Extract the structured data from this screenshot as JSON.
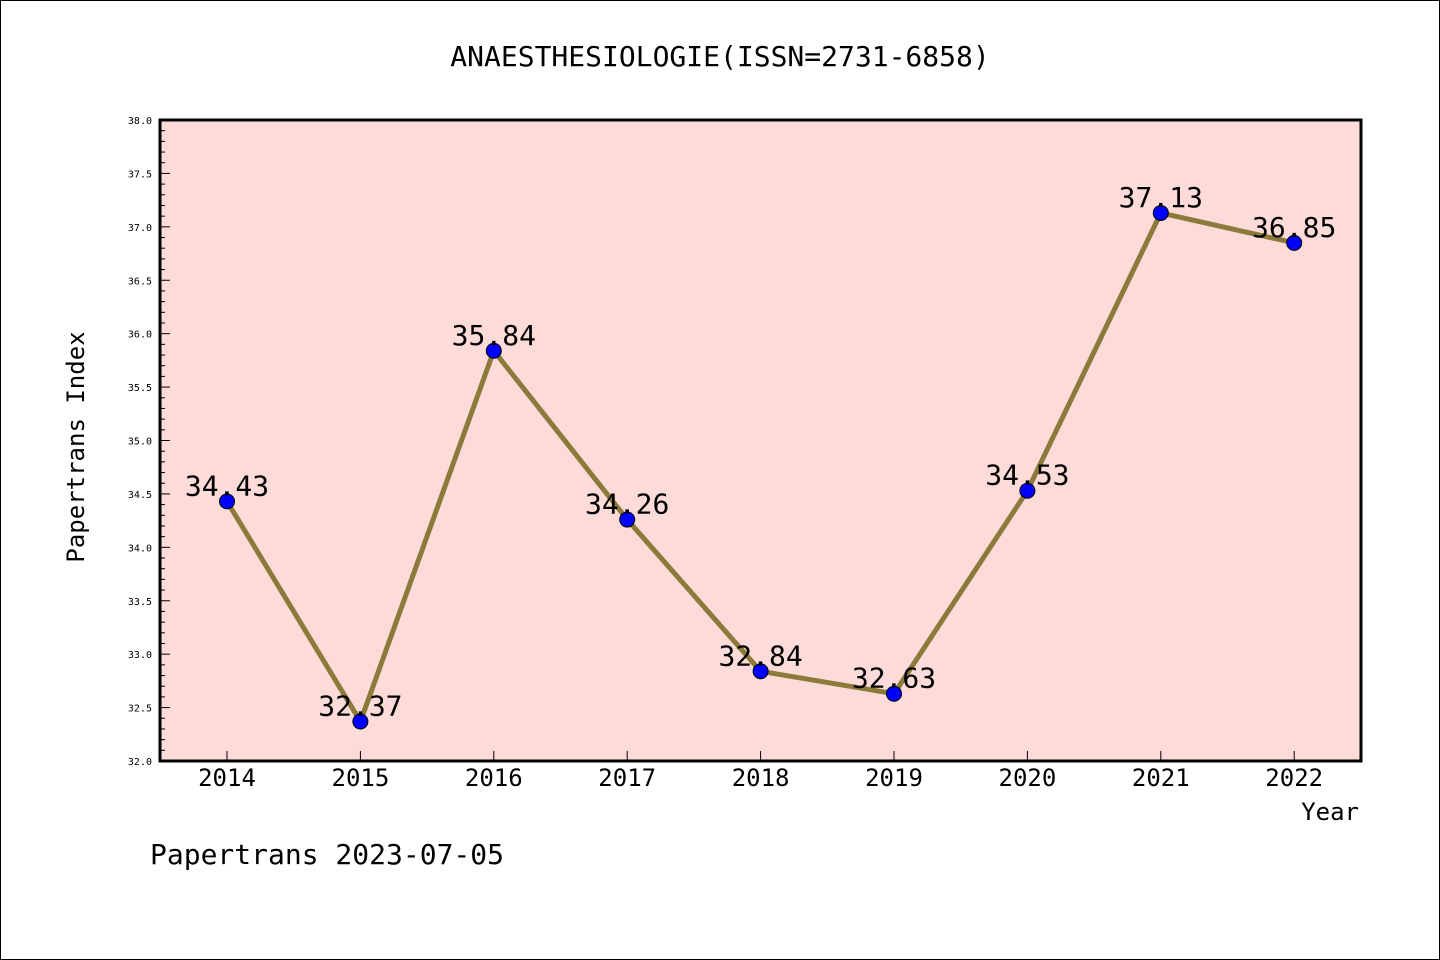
{
  "chart_data": {
    "type": "line",
    "title": "ANAESTHESIOLOGIE(ISSN=2731-6858)",
    "xlabel": "Year",
    "ylabel": "Papertrans Index",
    "categories": [
      "2014",
      "2015",
      "2016",
      "2017",
      "2018",
      "2019",
      "2020",
      "2021",
      "2022"
    ],
    "values": [
      34.43,
      32.37,
      35.84,
      34.26,
      32.84,
      32.63,
      34.53,
      37.13,
      36.85
    ],
    "data_labels": [
      "34.43",
      "32.37",
      "35.84",
      "34.26",
      "32.84",
      "32.63",
      "34.53",
      "37.13",
      "36.85"
    ],
    "ylim": [
      32.0,
      38.0
    ],
    "yticks": [
      "32.0",
      "32.5",
      "33.0",
      "33.5",
      "34.0",
      "34.5",
      "35.0",
      "35.5",
      "36.0",
      "36.5",
      "37.0",
      "37.5",
      "38.0"
    ],
    "grid": false,
    "legend": "none",
    "colors": {
      "plot_background": "#fddbd8",
      "line": "#8b7a3a",
      "marker": "#0000ff"
    }
  },
  "footer": {
    "text": "Papertrans 2023-07-05"
  }
}
